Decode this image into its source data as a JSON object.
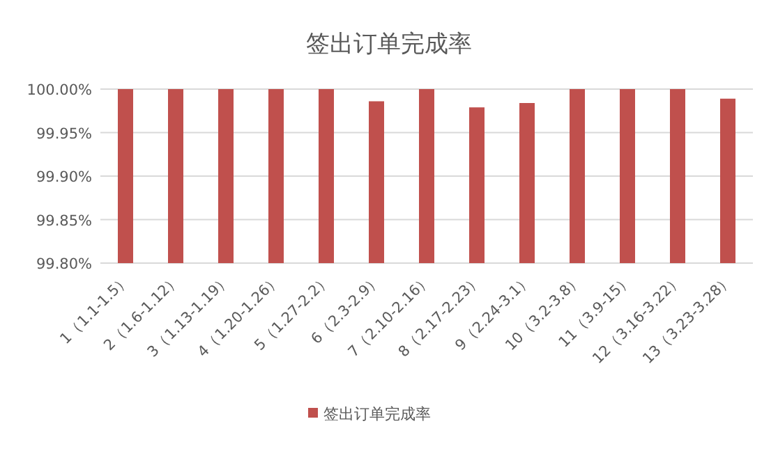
{
  "chart_data": {
    "type": "bar",
    "title": "签出订单完成率",
    "categories": [
      "1（1.1-1.5）",
      "2（1.6-1.12）",
      "3（1.13-1.19）",
      "4（1.20-1.26）",
      "5（1.27-2.2）",
      "6（2.3-2.9）",
      "7（2.10-2.16）",
      "8（2.17-2.23）",
      "9（2.24-3.1）",
      "10（3.2-3.8）",
      "11（3.9-15）",
      "12（3.16-3.22）",
      "13（3.23-3.28）"
    ],
    "series": [
      {
        "name": "签出订单完成率",
        "color": "#c0504d",
        "values": [
          100,
          100,
          100,
          100,
          100,
          99.986,
          100,
          99.979,
          99.984,
          100,
          100,
          100,
          99.989
        ]
      }
    ],
    "ylim": [
      99.8,
      100
    ],
    "yticks": [
      {
        "value": 99.8,
        "label": "99.80%"
      },
      {
        "value": 99.85,
        "label": "99.85%"
      },
      {
        "value": 99.9,
        "label": "99.90%"
      },
      {
        "value": 99.95,
        "label": "99.95%"
      },
      {
        "value": 100,
        "label": "100.00%"
      }
    ],
    "grid": "y",
    "legend": "bottom"
  }
}
